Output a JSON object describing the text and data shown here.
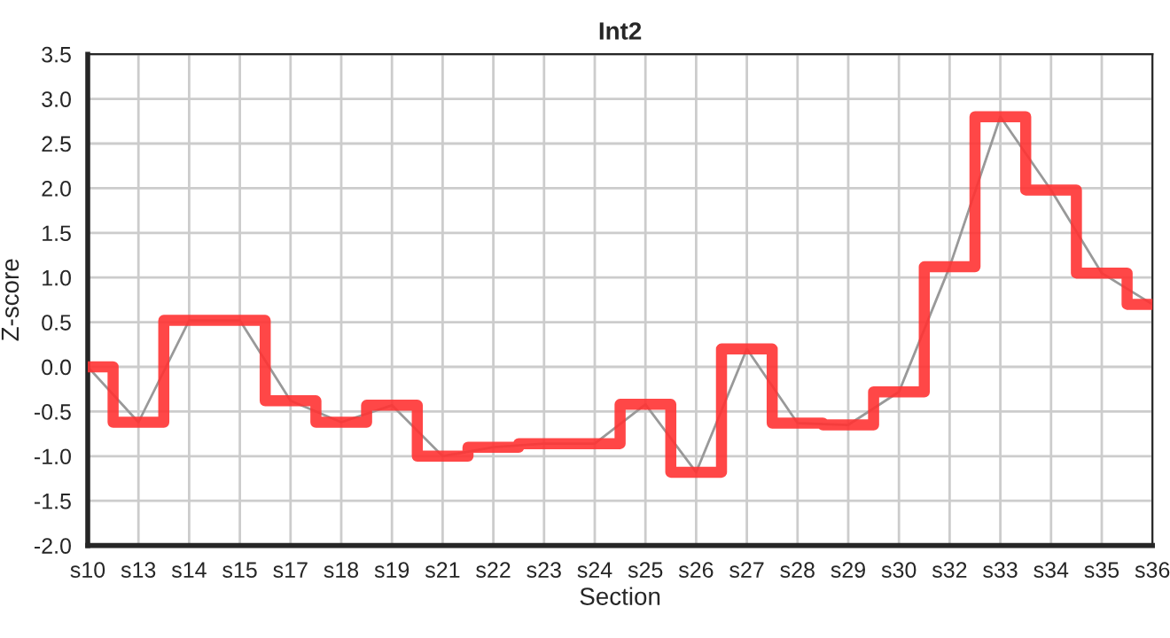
{
  "chart_data": {
    "type": "line",
    "title": "Int2",
    "xlabel": "Section",
    "ylabel": "Z-score",
    "categories": [
      "s10",
      "s13",
      "s14",
      "s15",
      "s17",
      "s18",
      "s19",
      "s21",
      "s22",
      "s23",
      "s24",
      "s25",
      "s26",
      "s27",
      "s28",
      "s29",
      "s30",
      "s32",
      "s33",
      "s34",
      "s35",
      "s36"
    ],
    "series": [
      {
        "color": "#999999",
        "values": [
          0.0,
          -0.62,
          0.52,
          0.52,
          -0.38,
          -0.62,
          -0.43,
          -1.0,
          -0.9,
          -0.86,
          -0.86,
          -0.42,
          -1.18,
          0.2,
          -0.63,
          -0.65,
          -0.28,
          1.12,
          2.8,
          1.98,
          1.05,
          0.7
        ]
      },
      {
        "type": "step",
        "color": "#ff3333",
        "values": [
          0.0,
          -0.62,
          0.52,
          0.52,
          -0.38,
          -0.62,
          -0.43,
          -1.0,
          -0.9,
          -0.86,
          -0.86,
          -0.42,
          -1.18,
          0.2,
          -0.63,
          -0.65,
          -0.28,
          1.12,
          2.8,
          1.98,
          1.05,
          0.7
        ]
      }
    ],
    "ylim": [
      -2.0,
      3.5
    ],
    "yticks": [
      {
        "value": -2.0,
        "label": "-2.0"
      },
      {
        "value": -1.5,
        "label": "-1.5"
      },
      {
        "value": -1.0,
        "label": "-1.0"
      },
      {
        "value": -0.5,
        "label": "-0.5"
      },
      {
        "value": 0.0,
        "label": "0.0"
      },
      {
        "value": 0.5,
        "label": "0.5"
      },
      {
        "value": 1.0,
        "label": "1.0"
      },
      {
        "value": 1.5,
        "label": "1.5"
      },
      {
        "value": 2.0,
        "label": "2.0"
      },
      {
        "value": 2.5,
        "label": "2.5"
      },
      {
        "value": 3.0,
        "label": "3.0"
      },
      {
        "value": 3.5,
        "label": "3.5"
      }
    ],
    "grid": true,
    "line_style": "solid",
    "marker": "none"
  }
}
